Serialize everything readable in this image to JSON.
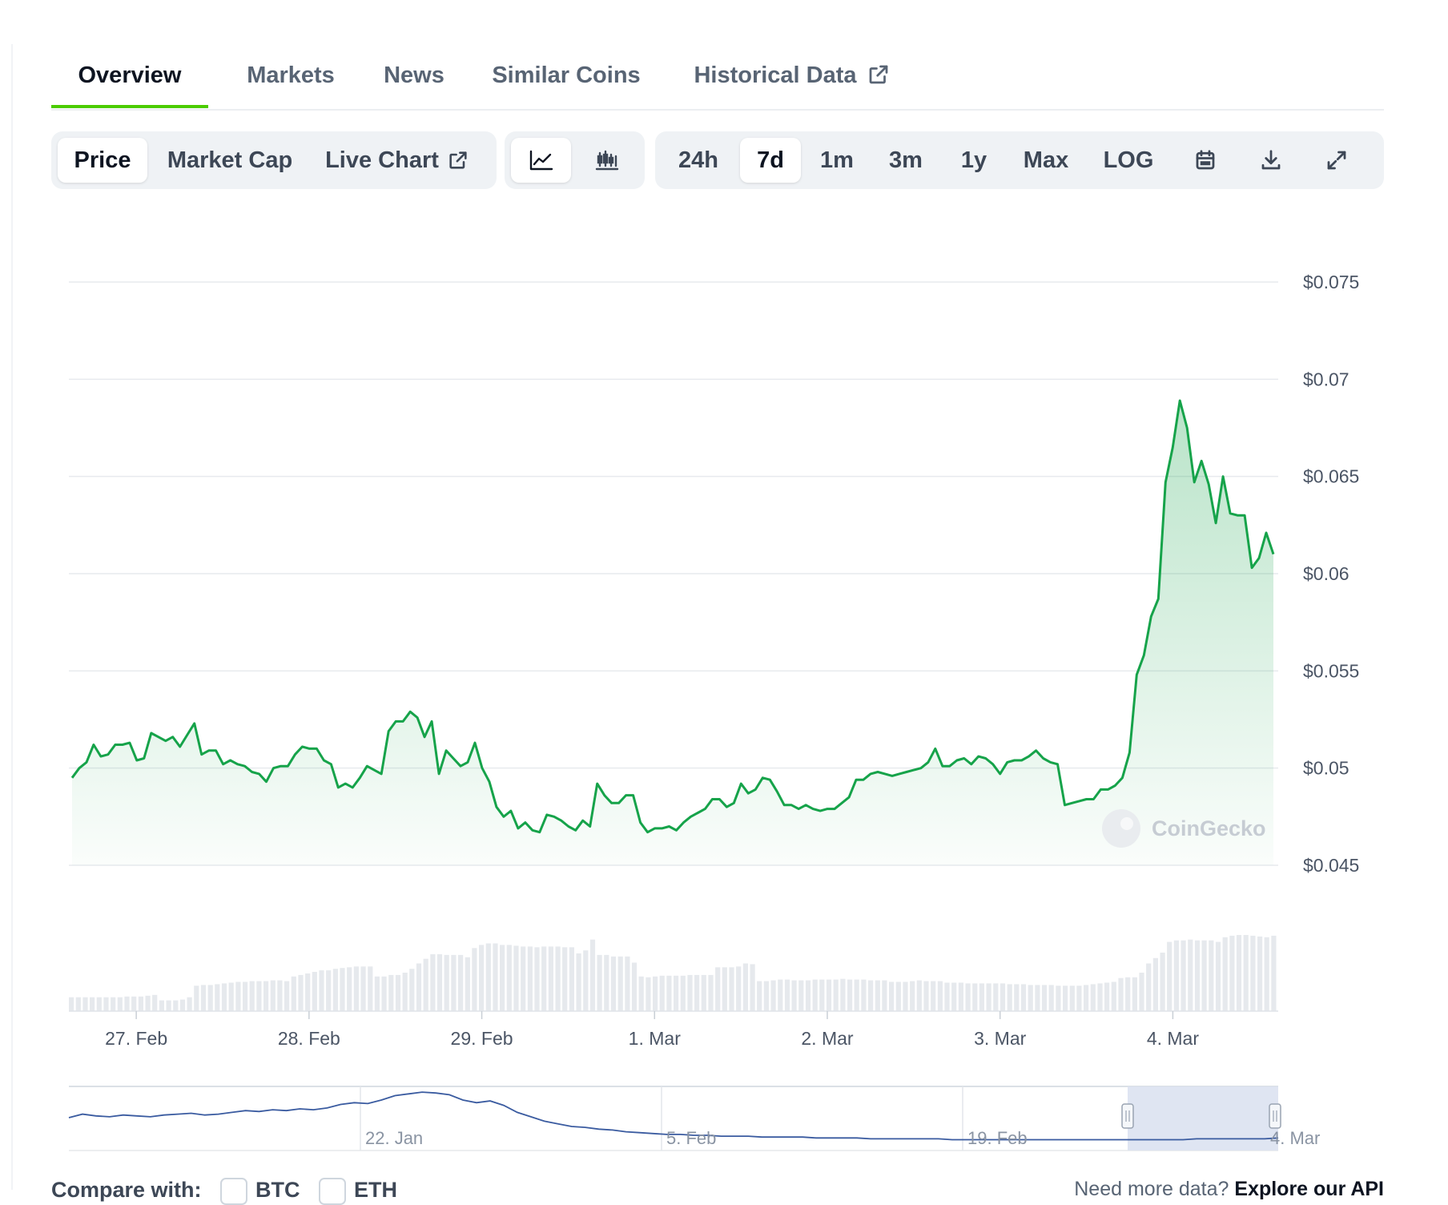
{
  "tabs": [
    {
      "label": "Overview",
      "active": true
    },
    {
      "label": "Markets",
      "active": false
    },
    {
      "label": "News",
      "active": false
    },
    {
      "label": "Similar Coins",
      "active": false
    },
    {
      "label": "Historical Data",
      "active": false,
      "external": true
    }
  ],
  "toolbar": {
    "metric": [
      {
        "label": "Price",
        "active": true
      },
      {
        "label": "Market Cap",
        "active": false
      },
      {
        "label": "Live Chart",
        "active": false,
        "external": true
      }
    ],
    "chart_style": [
      {
        "icon": "line-chart-icon",
        "active": true
      },
      {
        "icon": "candlestick-chart-icon",
        "active": false
      }
    ],
    "ranges": [
      {
        "label": "24h",
        "active": false
      },
      {
        "label": "7d",
        "active": true
      },
      {
        "label": "1m",
        "active": false
      },
      {
        "label": "3m",
        "active": false
      },
      {
        "label": "1y",
        "active": false
      },
      {
        "label": "Max",
        "active": false
      },
      {
        "label": "LOG",
        "active": false
      }
    ],
    "tools": [
      {
        "icon": "calendar-icon"
      },
      {
        "icon": "download-icon"
      },
      {
        "icon": "expand-icon"
      }
    ]
  },
  "colors": {
    "accent": "#4bcc00",
    "line": "#16a34a",
    "navigator_line": "#3a5ba0",
    "navigator_window": "#dbe2f1"
  },
  "watermark": "CoinGecko",
  "chart_data": {
    "type": "area",
    "ylabels": [
      "$0.075",
      "$0.07",
      "$0.065",
      "$0.06",
      "$0.055",
      "$0.05",
      "$0.045"
    ],
    "yticks": [
      0.075,
      0.07,
      0.065,
      0.06,
      0.055,
      0.05,
      0.045
    ],
    "ylim": [
      0.045,
      0.075
    ],
    "xlabels": [
      "27. Feb",
      "28. Feb",
      "29. Feb",
      "1. Mar",
      "2. Mar",
      "3. Mar",
      "4. Mar"
    ],
    "xlim_days": [
      0,
      7.0
    ],
    "xtick_days": [
      0.39,
      1.39,
      2.39,
      3.39,
      4.39,
      5.39,
      6.39
    ],
    "grid": true,
    "series": [
      {
        "values": [
          0.0495,
          0.05,
          0.0503,
          0.0512,
          0.0506,
          0.0507,
          0.0512,
          0.0512,
          0.0513,
          0.0504,
          0.0505,
          0.0518,
          0.0516,
          0.0514,
          0.0516,
          0.0511,
          0.0517,
          0.0523,
          0.0507,
          0.0509,
          0.0509,
          0.0502,
          0.0504,
          0.0502,
          0.0501,
          0.0498,
          0.0497,
          0.0493,
          0.05,
          0.0501,
          0.0501,
          0.0507,
          0.0511,
          0.051,
          0.051,
          0.0504,
          0.0502,
          0.049,
          0.0492,
          0.049,
          0.0495,
          0.0501,
          0.0499,
          0.0497,
          0.0519,
          0.0524,
          0.0524,
          0.0529,
          0.0526,
          0.0516,
          0.0524,
          0.0497,
          0.0509,
          0.0505,
          0.0501,
          0.0503,
          0.0513,
          0.05,
          0.0493,
          0.048,
          0.0475,
          0.0478,
          0.0469,
          0.0472,
          0.0468,
          0.0467,
          0.0476,
          0.0475,
          0.0473,
          0.047,
          0.0468,
          0.0473,
          0.047,
          0.0492,
          0.0486,
          0.0482,
          0.0482,
          0.0486,
          0.0486,
          0.0472,
          0.0467,
          0.0469,
          0.0469,
          0.047,
          0.0468,
          0.0472,
          0.0475,
          0.0477,
          0.0479,
          0.0484,
          0.0484,
          0.048,
          0.0482,
          0.0492,
          0.0487,
          0.0489,
          0.0495,
          0.0494,
          0.0488,
          0.0481,
          0.0481,
          0.0479,
          0.0481,
          0.0479,
          0.0478,
          0.0479,
          0.0479,
          0.0482,
          0.0485,
          0.0494,
          0.0494,
          0.0497,
          0.0498,
          0.0497,
          0.0496,
          0.0497,
          0.0498,
          0.0499,
          0.05,
          0.0503,
          0.051,
          0.0501,
          0.0501,
          0.0504,
          0.0505,
          0.0502,
          0.0506,
          0.0505,
          0.0502,
          0.0497,
          0.0503,
          0.0504,
          0.0504,
          0.0506,
          0.0509,
          0.0505,
          0.0503,
          0.0502,
          0.0481,
          0.0482,
          0.0483,
          0.0484,
          0.0484,
          0.0489,
          0.0489,
          0.0491,
          0.0495,
          0.0508,
          0.0548,
          0.0558,
          0.0578,
          0.0587,
          0.0647,
          0.0665,
          0.0689,
          0.0675,
          0.0647,
          0.0658,
          0.0646,
          0.0626,
          0.065,
          0.0631,
          0.063,
          0.063,
          0.0603,
          0.0608,
          0.0621,
          0.061
        ]
      }
    ],
    "volume_relative": [
      0.18,
      0.18,
      0.18,
      0.18,
      0.18,
      0.18,
      0.18,
      0.18,
      0.19,
      0.19,
      0.19,
      0.2,
      0.21,
      0.14,
      0.14,
      0.14,
      0.15,
      0.18,
      0.33,
      0.34,
      0.34,
      0.35,
      0.36,
      0.37,
      0.38,
      0.38,
      0.39,
      0.39,
      0.39,
      0.4,
      0.4,
      0.39,
      0.45,
      0.47,
      0.49,
      0.51,
      0.53,
      0.53,
      0.55,
      0.56,
      0.57,
      0.58,
      0.58,
      0.58,
      0.45,
      0.45,
      0.47,
      0.47,
      0.5,
      0.55,
      0.62,
      0.68,
      0.74,
      0.74,
      0.73,
      0.73,
      0.73,
      0.7,
      0.82,
      0.86,
      0.88,
      0.88,
      0.86,
      0.86,
      0.85,
      0.84,
      0.84,
      0.83,
      0.84,
      0.84,
      0.84,
      0.83,
      0.83,
      0.75,
      0.79,
      0.93,
      0.73,
      0.73,
      0.71,
      0.71,
      0.71,
      0.63,
      0.45,
      0.44,
      0.45,
      0.46,
      0.46,
      0.46,
      0.46,
      0.47,
      0.47,
      0.47,
      0.47,
      0.57,
      0.57,
      0.57,
      0.58,
      0.62,
      0.61,
      0.39,
      0.39,
      0.4,
      0.41,
      0.41,
      0.4,
      0.4,
      0.4,
      0.41,
      0.41,
      0.41,
      0.41,
      0.42,
      0.41,
      0.41,
      0.41,
      0.4,
      0.4,
      0.4,
      0.38,
      0.38,
      0.38,
      0.39,
      0.4,
      0.39,
      0.39,
      0.39,
      0.37,
      0.37,
      0.37,
      0.36,
      0.36,
      0.36,
      0.36,
      0.36,
      0.36,
      0.35,
      0.35,
      0.35,
      0.34,
      0.34,
      0.34,
      0.34,
      0.33,
      0.33,
      0.33,
      0.33,
      0.34,
      0.35,
      0.36,
      0.37,
      0.38,
      0.43,
      0.44,
      0.44,
      0.5,
      0.62,
      0.69,
      0.76,
      0.9,
      0.92,
      0.92,
      0.93,
      0.92,
      0.92,
      0.92,
      0.9,
      0.96,
      0.98,
      0.99,
      0.99,
      0.98,
      0.97,
      0.96,
      0.98
    ],
    "navigator": {
      "labels": [
        "22. Jan",
        "5. Feb",
        "19. Feb",
        "4. Mar"
      ],
      "values": [
        0.3,
        0.34,
        0.32,
        0.31,
        0.33,
        0.32,
        0.31,
        0.33,
        0.34,
        0.35,
        0.33,
        0.34,
        0.36,
        0.38,
        0.37,
        0.39,
        0.38,
        0.4,
        0.39,
        0.41,
        0.45,
        0.47,
        0.46,
        0.5,
        0.55,
        0.57,
        0.59,
        0.58,
        0.56,
        0.5,
        0.47,
        0.49,
        0.44,
        0.36,
        0.31,
        0.26,
        0.23,
        0.2,
        0.19,
        0.17,
        0.16,
        0.14,
        0.13,
        0.12,
        0.11,
        0.11,
        0.1,
        0.1,
        0.09,
        0.09,
        0.09,
        0.08,
        0.08,
        0.08,
        0.08,
        0.07,
        0.07,
        0.07,
        0.07,
        0.06,
        0.06,
        0.06,
        0.06,
        0.06,
        0.06,
        0.05,
        0.05,
        0.05,
        0.05,
        0.05,
        0.05,
        0.05,
        0.05,
        0.05,
        0.05,
        0.05,
        0.05,
        0.05,
        0.05,
        0.05,
        0.05,
        0.05,
        0.05,
        0.06,
        0.06,
        0.06,
        0.06,
        0.06,
        0.06,
        0.07
      ]
    }
  },
  "footer": {
    "compare_label": "Compare with:",
    "compare_options": [
      "BTC",
      "ETH"
    ],
    "api_prefix": "Need more data?",
    "api_link": "Explore our API"
  }
}
